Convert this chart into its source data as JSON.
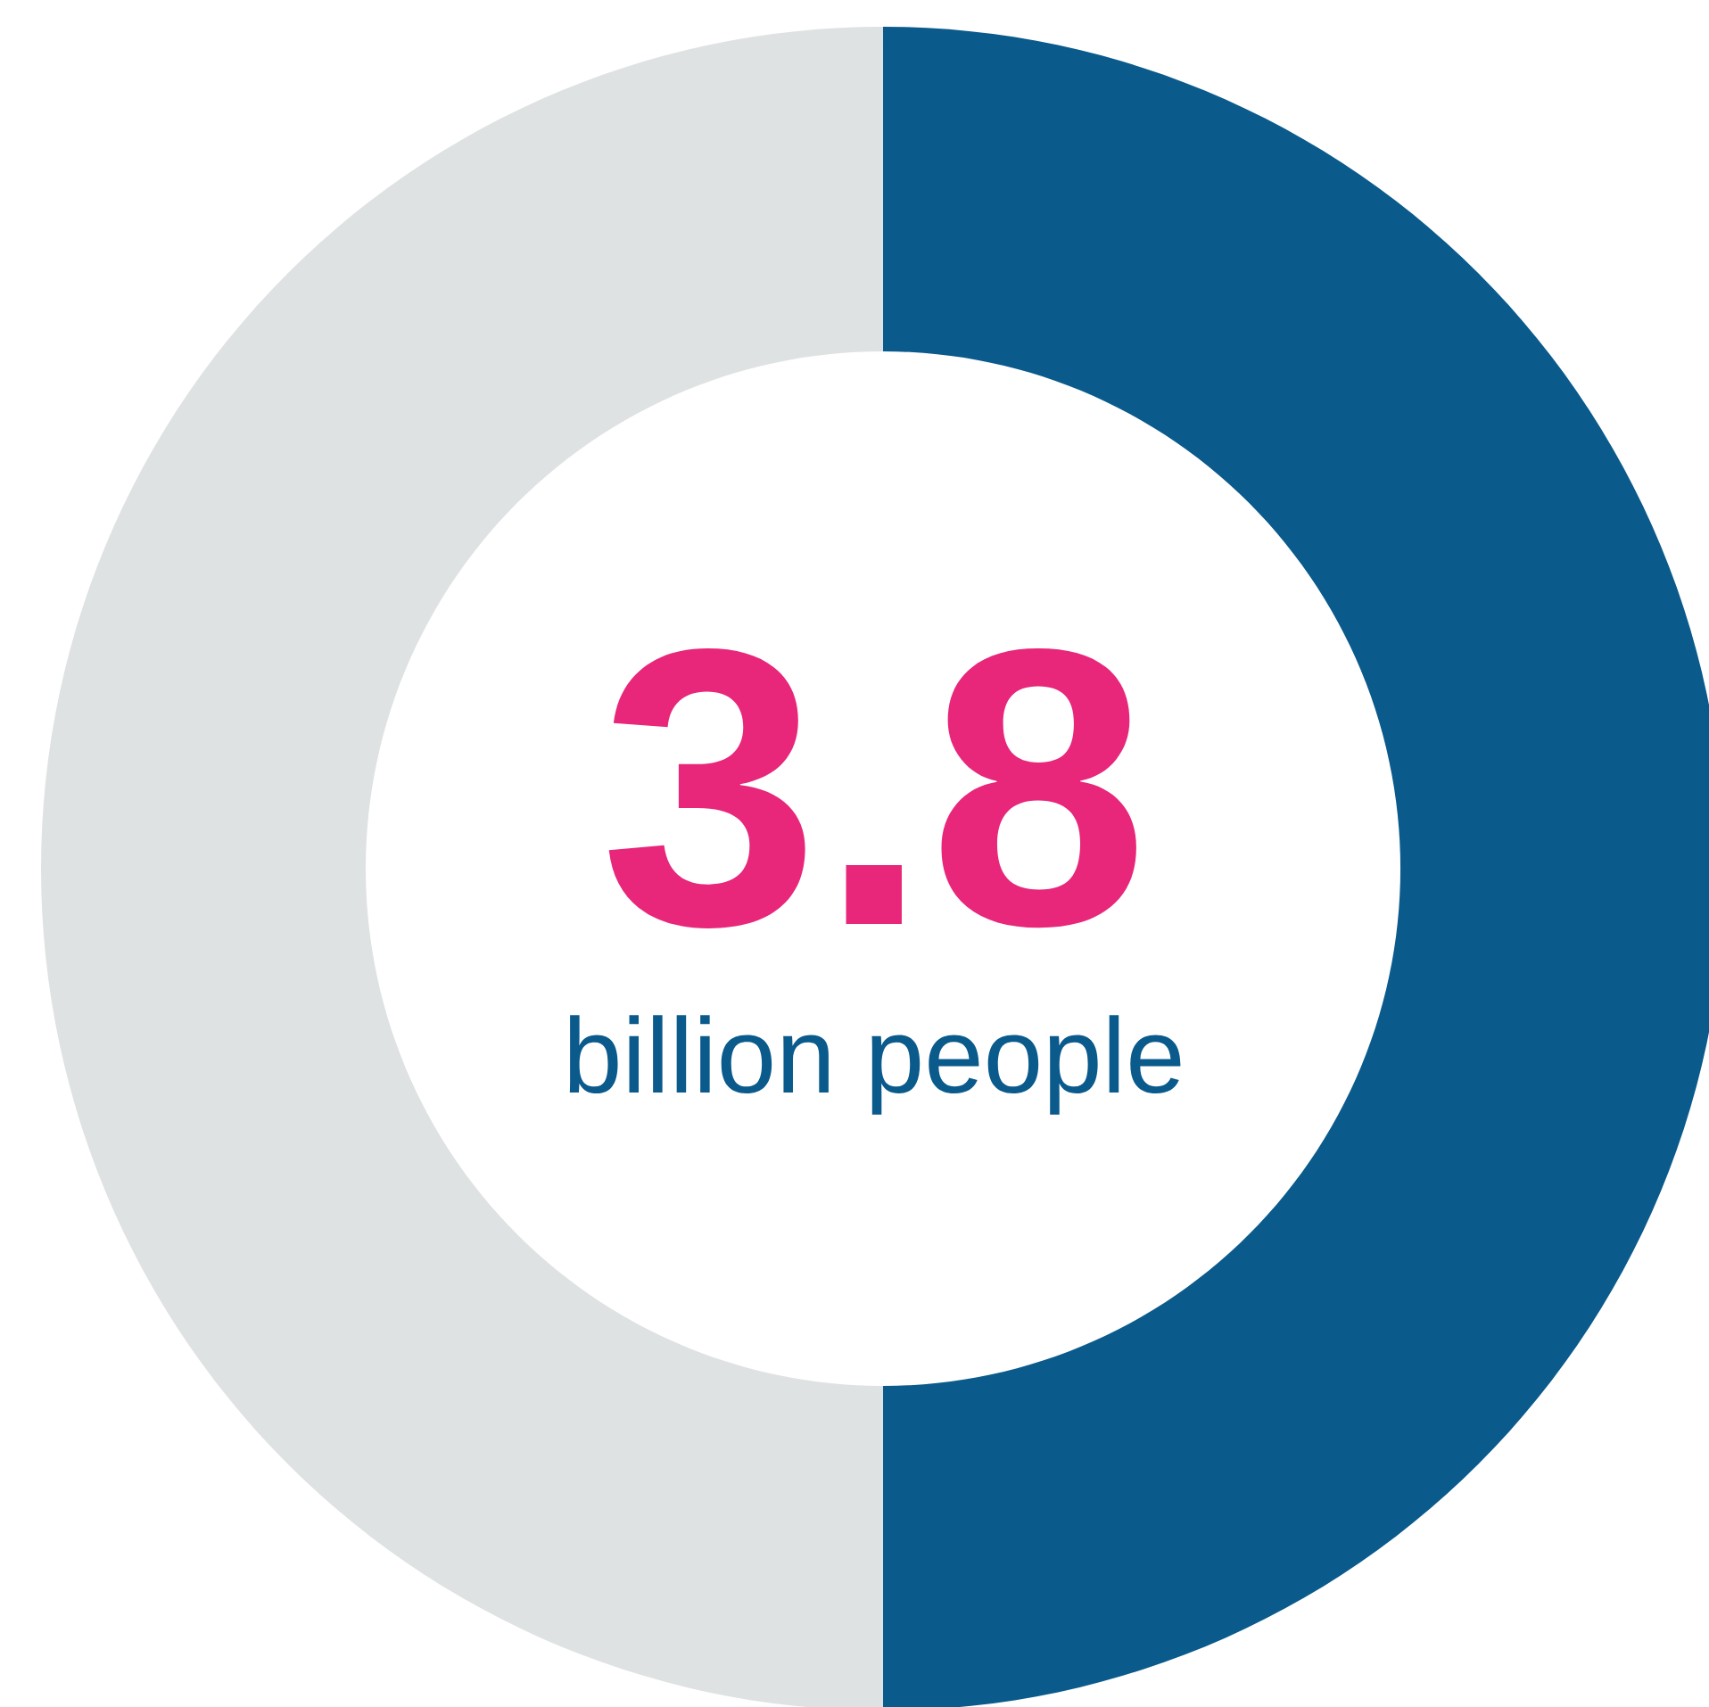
{
  "chart_data": {
    "type": "donut",
    "categories": [
      null,
      null
    ],
    "values": [
      50,
      50
    ],
    "colors": [
      "#0a5a8c",
      "#dfe2e3"
    ],
    "annotations": [
      "3.8",
      "billion people"
    ]
  }
}
